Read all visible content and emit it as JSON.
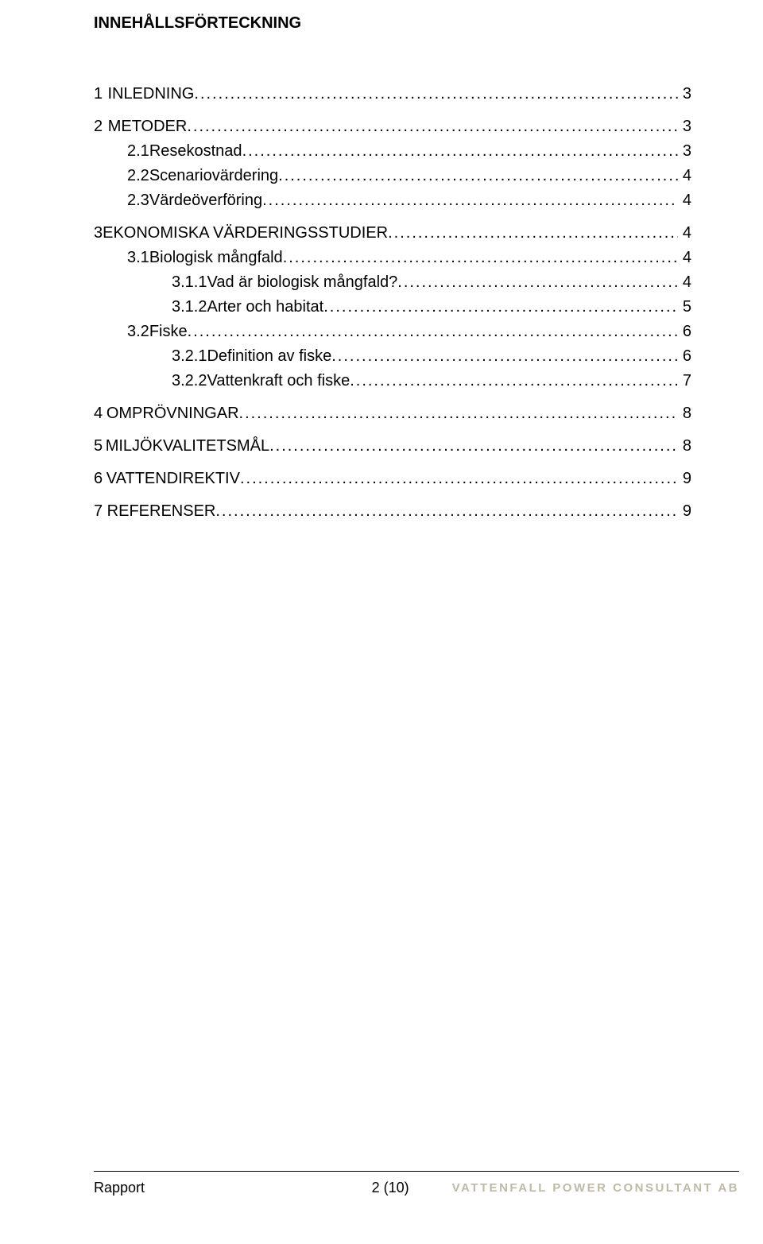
{
  "title": "INNEHÅLLSFÖRTECKNING",
  "toc": [
    {
      "num": "1",
      "label": "INLEDNING",
      "page": "3",
      "depth": 1
    },
    {
      "num": "2",
      "label": "METODER",
      "page": "3",
      "depth": 1
    },
    {
      "num": "2.1",
      "label": "Resekostnad",
      "page": "3",
      "depth": 2
    },
    {
      "num": "2.2",
      "label": "Scenariovärdering",
      "page": "4",
      "depth": 2
    },
    {
      "num": "2.3",
      "label": "Värdeöverföring",
      "page": "4",
      "depth": 2
    },
    {
      "num": "3",
      "label": "EKONOMISKA VÄRDERINGSSTUDIER",
      "page": "4",
      "depth": 1
    },
    {
      "num": "3.1",
      "label": "Biologisk mångfald",
      "page": "4",
      "depth": 2
    },
    {
      "num": "3.1.1",
      "label": "Vad är biologisk mångfald?",
      "page": "4",
      "depth": 3
    },
    {
      "num": "3.1.2",
      "label": "Arter och habitat",
      "page": "5",
      "depth": 3
    },
    {
      "num": "3.2",
      "label": "Fiske",
      "page": "6",
      "depth": 2
    },
    {
      "num": "3.2.1",
      "label": "Definition av fiske",
      "page": "6",
      "depth": 3
    },
    {
      "num": "3.2.2",
      "label": "Vattenkraft och fiske",
      "page": "7",
      "depth": 3
    },
    {
      "num": "4",
      "label": "OMPRÖVNINGAR",
      "page": "8",
      "depth": 1
    },
    {
      "num": "5",
      "label": "MILJÖKVALITETSMÅL",
      "page": "8",
      "depth": 1
    },
    {
      "num": "6",
      "label": "VATTENDIREKTIV",
      "page": "9",
      "depth": 1
    },
    {
      "num": "7",
      "label": "REFERENSER",
      "page": "9",
      "depth": 1
    }
  ],
  "footer": {
    "left": "Rapport",
    "center": "2 (10)",
    "right": "VATTENFALL POWER CONSULTANT AB"
  },
  "colors": {
    "text": "#000000",
    "background": "#ffffff",
    "footer_brand": "#bfb9a8"
  }
}
